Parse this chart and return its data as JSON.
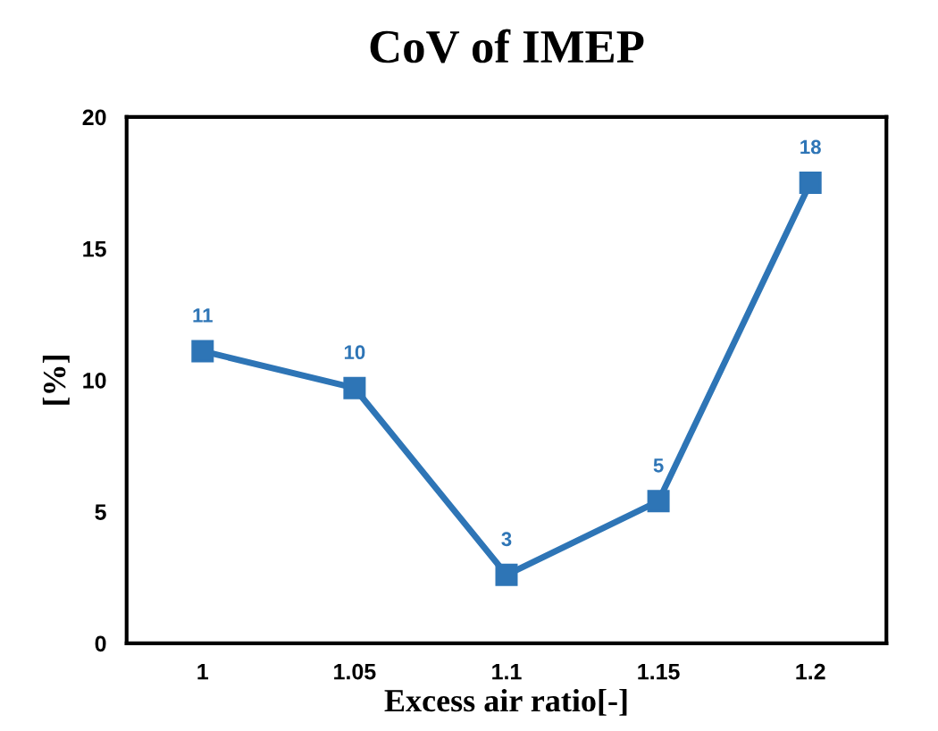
{
  "chart_data": {
    "type": "line",
    "title": "CoV of IMEP",
    "xlabel": "Excess air ratio[-]",
    "ylabel": "[%]",
    "categories": [
      "1",
      "1.05",
      "1.1",
      "1.15",
      "1.2"
    ],
    "series": [
      {
        "color": "#2e75b6",
        "values": [
          11.1,
          9.7,
          2.6,
          5.4,
          17.5
        ],
        "value_labels": [
          "11",
          "10",
          "3",
          "5",
          "18"
        ]
      }
    ],
    "ylim": [
      0,
      20
    ],
    "yticks": [
      0,
      5,
      10,
      15,
      20
    ],
    "grid": false,
    "legend": false,
    "marker": "square",
    "line_style": "solid"
  }
}
